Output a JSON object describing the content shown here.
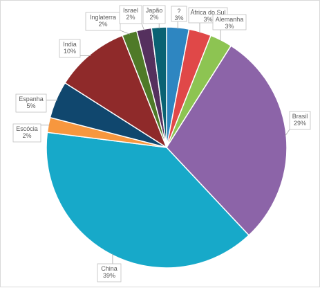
{
  "chart_data": {
    "type": "pie",
    "title": "",
    "categories": [
      "?",
      "África do Sul",
      "Alemanha",
      "Brasil",
      "China",
      "Escócia",
      "Espanha",
      "India",
      "Inglaterra",
      "Israel",
      "Japão"
    ],
    "values": [
      3,
      3,
      3,
      29,
      39,
      2,
      5,
      10,
      2,
      2,
      2
    ],
    "labels": [
      "3%",
      "3%",
      "3%",
      "29%",
      "39%",
      "2%",
      "5%",
      "10%",
      "2%",
      "2%",
      "2%"
    ],
    "colors": [
      "#2e86c1",
      "#e04848",
      "#8dc452",
      "#8c64a8",
      "#17a9c9",
      "#f7973e",
      "#10476e",
      "#8f2a2a",
      "#4f7a28",
      "#55305e",
      "#0a6273"
    ],
    "legend": "none"
  }
}
